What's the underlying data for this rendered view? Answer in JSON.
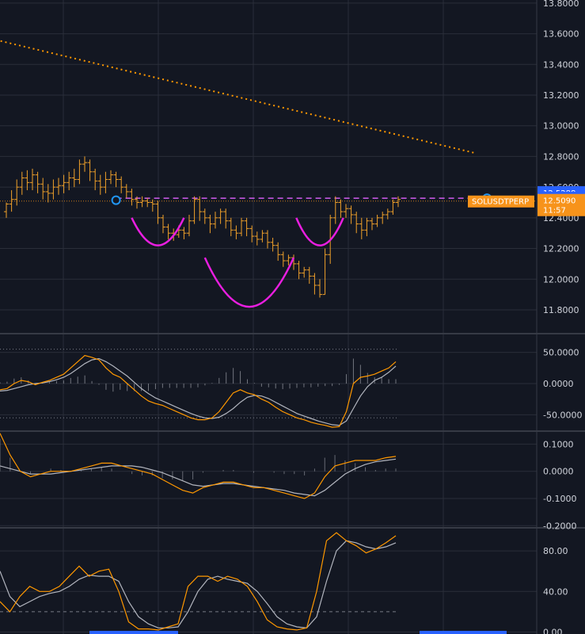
{
  "chart_data": {
    "type": "candlestick",
    "symbol": "SOLUSDTPERP",
    "colors": {
      "background": "#131722",
      "grid": "#2a2e39",
      "candle": "#f0a12a",
      "trendline": "#ff9800",
      "pattern": "#e91ee0",
      "neckline": "#d05cf0",
      "price_tag": "#f7931a",
      "level_tag": "#2962ff",
      "indicator_fast": "#ff9800",
      "indicator_slow": "#b2b5be",
      "divider": "#363a45",
      "marker": "#2196f3"
    },
    "price_panel": {
      "y_ticks": [
        "13.8000",
        "13.6000",
        "13.4000",
        "13.2000",
        "13.0000",
        "12.8000",
        "12.6000",
        "12.4000",
        "12.2000",
        "12.0000",
        "11.8000"
      ],
      "ylim": [
        11.65,
        13.82
      ],
      "tags": [
        {
          "name": "level-tag-upper",
          "label": "12.5288",
          "value": 12.565,
          "kind": "level"
        },
        {
          "name": "level-tag-lower",
          "label": "12.5288",
          "value": 12.5288,
          "kind": "level"
        },
        {
          "name": "last-price-tag",
          "label": "12.5090",
          "value": 12.509,
          "kind": "price"
        }
      ],
      "last_price": 12.509,
      "countdown": "11:57",
      "candles": [
        [
          12.44,
          12.49,
          12.4,
          12.5
        ],
        [
          12.49,
          12.52,
          12.44,
          12.58
        ],
        [
          12.52,
          12.6,
          12.48,
          12.65
        ],
        [
          12.6,
          12.66,
          12.55,
          12.7
        ],
        [
          12.66,
          12.63,
          12.58,
          12.71
        ],
        [
          12.63,
          12.68,
          12.58,
          12.72
        ],
        [
          12.68,
          12.62,
          12.56,
          12.7
        ],
        [
          12.62,
          12.57,
          12.52,
          12.66
        ],
        [
          12.57,
          12.56,
          12.5,
          12.62
        ],
        [
          12.56,
          12.6,
          12.52,
          12.65
        ],
        [
          12.6,
          12.61,
          12.55,
          12.66
        ],
        [
          12.61,
          12.63,
          12.56,
          12.68
        ],
        [
          12.63,
          12.66,
          12.58,
          12.7
        ],
        [
          12.66,
          12.65,
          12.6,
          12.72
        ],
        [
          12.65,
          12.75,
          12.62,
          12.78
        ],
        [
          12.75,
          12.76,
          12.7,
          12.8
        ],
        [
          12.76,
          12.7,
          12.64,
          12.78
        ],
        [
          12.7,
          12.64,
          12.58,
          12.72
        ],
        [
          12.64,
          12.6,
          12.55,
          12.68
        ],
        [
          12.6,
          12.65,
          12.56,
          12.7
        ],
        [
          12.65,
          12.68,
          12.62,
          12.71
        ],
        [
          12.68,
          12.65,
          12.6,
          12.7
        ],
        [
          12.65,
          12.6,
          12.56,
          12.67
        ],
        [
          12.6,
          12.57,
          12.53,
          12.62
        ],
        [
          12.57,
          12.52,
          12.48,
          12.59
        ],
        [
          12.52,
          12.5,
          12.46,
          12.54
        ],
        [
          12.5,
          12.51,
          12.47,
          12.54
        ],
        [
          12.51,
          12.5,
          12.47,
          12.53
        ],
        [
          12.5,
          12.49,
          12.44,
          12.52
        ],
        [
          12.49,
          12.4,
          12.36,
          12.51
        ],
        [
          12.4,
          12.34,
          12.3,
          12.42
        ],
        [
          12.34,
          12.3,
          12.26,
          12.36
        ],
        [
          12.3,
          12.29,
          12.25,
          12.33
        ],
        [
          12.29,
          12.32,
          12.27,
          12.35
        ],
        [
          12.32,
          12.3,
          12.26,
          12.34
        ],
        [
          12.3,
          12.38,
          12.28,
          12.42
        ],
        [
          12.38,
          12.52,
          12.36,
          12.54
        ],
        [
          12.52,
          12.44,
          12.38,
          12.54
        ],
        [
          12.44,
          12.4,
          12.36,
          12.46
        ],
        [
          12.4,
          12.36,
          12.3,
          12.42
        ],
        [
          12.36,
          12.4,
          12.33,
          12.44
        ],
        [
          12.4,
          12.44,
          12.36,
          12.46
        ],
        [
          12.44,
          12.38,
          12.33,
          12.46
        ],
        [
          12.38,
          12.32,
          12.28,
          12.4
        ],
        [
          12.32,
          12.3,
          12.26,
          12.35
        ],
        [
          12.3,
          12.38,
          12.28,
          12.4
        ],
        [
          12.38,
          12.33,
          12.28,
          12.4
        ],
        [
          12.33,
          12.28,
          12.24,
          12.35
        ],
        [
          12.28,
          12.26,
          12.22,
          12.31
        ],
        [
          12.26,
          12.3,
          12.24,
          12.32
        ],
        [
          12.3,
          12.24,
          12.2,
          12.32
        ],
        [
          12.24,
          12.22,
          12.18,
          12.27
        ],
        [
          12.22,
          12.16,
          12.12,
          12.24
        ],
        [
          12.16,
          12.12,
          12.08,
          12.18
        ],
        [
          12.12,
          12.14,
          12.09,
          12.16
        ],
        [
          12.14,
          12.1,
          12.06,
          12.16
        ],
        [
          12.1,
          12.04,
          12.0,
          12.12
        ],
        [
          12.04,
          12.06,
          12.01,
          12.08
        ],
        [
          12.06,
          12.02,
          11.97,
          12.08
        ],
        [
          12.02,
          11.96,
          11.9,
          12.04
        ],
        [
          11.96,
          11.9,
          11.88,
          12.0
        ],
        [
          11.9,
          12.16,
          11.9,
          12.2
        ],
        [
          12.16,
          12.4,
          12.1,
          12.42
        ],
        [
          12.4,
          12.5,
          12.36,
          12.54
        ],
        [
          12.5,
          12.44,
          12.4,
          12.52
        ],
        [
          12.44,
          12.46,
          12.4,
          12.49
        ],
        [
          12.46,
          12.42,
          12.36,
          12.48
        ],
        [
          12.42,
          12.36,
          12.3,
          12.44
        ],
        [
          12.36,
          12.32,
          12.26,
          12.4
        ],
        [
          12.32,
          12.38,
          12.28,
          12.4
        ],
        [
          12.38,
          12.36,
          12.32,
          12.4
        ],
        [
          12.36,
          12.4,
          12.34,
          12.42
        ],
        [
          12.4,
          12.42,
          12.36,
          12.44
        ],
        [
          12.42,
          12.44,
          12.39,
          12.46
        ],
        [
          12.44,
          12.5,
          12.42,
          12.52
        ],
        [
          12.5,
          12.52,
          12.47,
          12.54
        ]
      ],
      "trendline": {
        "from": [
          -2,
          13.56
        ],
        "to": [
          90,
          12.82
        ]
      },
      "neckline": {
        "value": 12.528,
        "from": 21,
        "to": 92
      },
      "markers": [
        {
          "index": 21,
          "value": 12.515
        },
        {
          "index": 92,
          "value": 12.528
        }
      ],
      "arcs": [
        {
          "name": "left-shoulder-arc",
          "x1": 24,
          "x2": 34,
          "y1": 12.4,
          "bottom": 12.22
        },
        {
          "name": "head-arc",
          "x1": 38,
          "x2": 55,
          "y1": 12.14,
          "bottom": 11.82
        },
        {
          "name": "right-shoulder-arc",
          "x1": 55.5,
          "x2": 64.5,
          "y1": 12.4,
          "bottom": 12.22
        }
      ]
    },
    "panel_1": {
      "y_ticks": [
        "50.0000",
        "0.0000",
        "-50.0000"
      ],
      "ylim": [
        -75,
        80
      ],
      "bands": [
        55,
        -55
      ],
      "fast": [
        -10,
        -8,
        0,
        5,
        3,
        -2,
        2,
        5,
        10,
        15,
        25,
        35,
        45,
        42,
        38,
        25,
        15,
        10,
        0,
        -10,
        -20,
        -28,
        -32,
        -35,
        -40,
        -45,
        -50,
        -55,
        -58,
        -58,
        -55,
        -45,
        -30,
        -15,
        -10,
        -15,
        -18,
        -25,
        -30,
        -38,
        -45,
        -50,
        -55,
        -58,
        -62,
        -65,
        -67,
        -70,
        -69,
        -45,
        0,
        10,
        12,
        15,
        20,
        25,
        35
      ],
      "slow": [
        -12,
        -11,
        -8,
        -5,
        -2,
        0,
        1,
        3,
        6,
        10,
        16,
        24,
        32,
        38,
        40,
        35,
        28,
        20,
        12,
        2,
        -8,
        -16,
        -23,
        -28,
        -33,
        -38,
        -43,
        -48,
        -52,
        -55,
        -56,
        -54,
        -48,
        -40,
        -30,
        -22,
        -19,
        -20,
        -24,
        -30,
        -36,
        -42,
        -48,
        -52,
        -56,
        -60,
        -63,
        -66,
        -67,
        -60,
        -40,
        -20,
        -5,
        5,
        10,
        18,
        28
      ],
      "hist": [
        2,
        3,
        8,
        10,
        5,
        -2,
        1,
        2,
        4,
        5,
        9,
        11,
        13,
        4,
        -2,
        -10,
        -13,
        -10,
        -12,
        -12,
        -12,
        -12,
        -9,
        -7,
        -7,
        -7,
        -7,
        -7,
        -6,
        -3,
        1,
        9,
        18,
        25,
        20,
        7,
        1,
        -5,
        -6,
        -8,
        -9,
        -8,
        -7,
        -6,
        -6,
        -5,
        -4,
        -4,
        -2,
        15,
        40,
        30,
        17,
        10,
        10,
        7,
        7
      ]
    },
    "panel_2": {
      "y_ticks": [
        "0.1000",
        "0.0000",
        "-0.1000",
        "-0.2000"
      ],
      "ylim": [
        -0.205,
        0.145
      ],
      "fast": [
        0.14,
        0.06,
        0.0,
        -0.02,
        -0.01,
        0.0,
        0.0,
        0.0,
        0.01,
        0.02,
        0.03,
        0.03,
        0.02,
        0.01,
        0.0,
        -0.01,
        -0.03,
        -0.05,
        -0.07,
        -0.08,
        -0.06,
        -0.05,
        -0.04,
        -0.04,
        -0.05,
        -0.06,
        -0.06,
        -0.07,
        -0.08,
        -0.09,
        -0.1,
        -0.08,
        -0.02,
        0.02,
        0.03,
        0.04,
        0.04,
        0.04,
        0.05,
        0.055
      ],
      "slow": [
        0.02,
        0.01,
        0.0,
        -0.01,
        -0.01,
        -0.01,
        -0.005,
        0.0,
        0.005,
        0.01,
        0.015,
        0.02,
        0.02,
        0.02,
        0.015,
        0.005,
        -0.005,
        -0.02,
        -0.035,
        -0.05,
        -0.055,
        -0.05,
        -0.045,
        -0.045,
        -0.05,
        -0.055,
        -0.06,
        -0.065,
        -0.07,
        -0.08,
        -0.085,
        -0.09,
        -0.07,
        -0.04,
        -0.01,
        0.01,
        0.025,
        0.035,
        0.04,
        0.045
      ]
    },
    "panel_3": {
      "y_ticks": [
        "80.00",
        "40.00",
        "0.00"
      ],
      "ylim": [
        -2,
        102
      ],
      "band": 20,
      "fast": [
        30,
        20,
        35,
        45,
        40,
        40,
        45,
        55,
        65,
        55,
        60,
        62,
        40,
        10,
        3,
        3,
        2,
        5,
        8,
        45,
        55,
        55,
        50,
        55,
        52,
        45,
        30,
        12,
        5,
        3,
        2,
        4,
        40,
        90,
        98,
        90,
        85,
        78,
        82,
        88,
        95
      ],
      "slow": [
        60,
        35,
        25,
        30,
        35,
        38,
        40,
        45,
        52,
        56,
        55,
        55,
        50,
        30,
        15,
        8,
        4,
        4,
        5,
        20,
        40,
        52,
        55,
        52,
        50,
        48,
        40,
        28,
        15,
        8,
        5,
        4,
        15,
        50,
        80,
        90,
        88,
        84,
        82,
        84,
        88
      ]
    }
  }
}
